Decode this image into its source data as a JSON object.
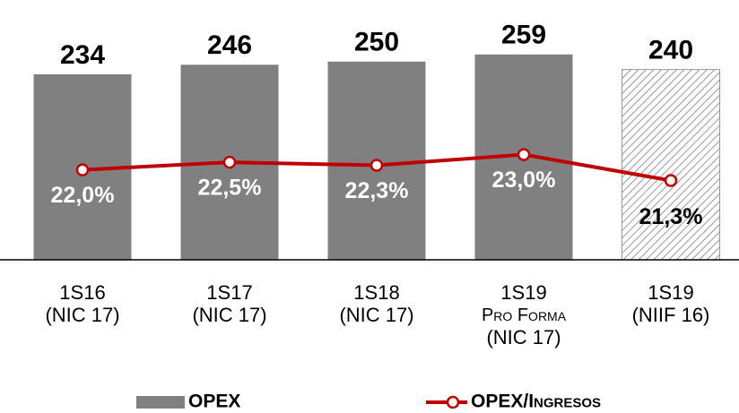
{
  "chart_data": {
    "type": "bar",
    "categories": [
      "1S16\n(NIC 17)",
      "1S17\n(NIC 17)",
      "1S18\n(NIC 17)",
      "1S19\nPro Forma\n(NIC 17)",
      "1S19\n(NIIF 16)"
    ],
    "ylim": [
      0,
      300
    ],
    "y2lim": [
      16.1,
      31.7
    ],
    "series": [
      {
        "name": "OPEX",
        "type": "bar",
        "color": "#808080",
        "patterns": [
          "solid",
          "solid",
          "solid",
          "solid",
          "hatch"
        ],
        "values": [
          234,
          246,
          250,
          259,
          240
        ]
      },
      {
        "name": "OPEX/Ingresos",
        "type": "line",
        "axis": "y2",
        "color": "#c00000",
        "values": [
          22.0,
          22.5,
          22.3,
          23.0,
          21.3
        ],
        "value_labels": [
          "22,0%",
          "22,5%",
          "22,3%",
          "23,0%",
          "21,3%"
        ]
      }
    ]
  }
}
